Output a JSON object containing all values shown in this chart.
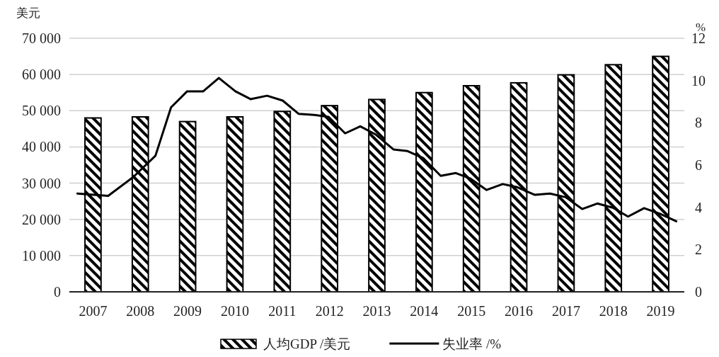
{
  "chart_data": {
    "type": "bar",
    "ylabel": "美元",
    "y2label": "%",
    "x": [
      2007,
      2008,
      2009,
      2010,
      2011,
      2012,
      2013,
      2014,
      2015,
      2016,
      2017,
      2018,
      2019
    ],
    "xlim": [
      2006.5,
      2019.5
    ],
    "xticks": [
      2007,
      2008,
      2009,
      2010,
      2011,
      2012,
      2013,
      2014,
      2015,
      2016,
      2017,
      2018,
      2019
    ],
    "ylim": [
      0,
      70000
    ],
    "yticks": [
      0,
      {
        "value": 10000,
        "label": "10 000"
      },
      {
        "value": 20000,
        "label": "20 000"
      },
      {
        "value": 30000,
        "label": "30 000"
      },
      {
        "value": 40000,
        "label": "40 000"
      },
      {
        "value": 50000,
        "label": "50 000"
      },
      {
        "value": 60000,
        "label": "60 000"
      },
      {
        "value": 70000,
        "label": "70 000"
      }
    ],
    "y2lim": [
      0,
      12
    ],
    "y2ticks": [
      0,
      2,
      4,
      6,
      8,
      10,
      12
    ],
    "grid": "y",
    "legend": "bottom",
    "series": [
      {
        "name": "人均GDP /美元",
        "color": "#000000",
        "values": [
          48000,
          48300,
          47000,
          48300,
          49800,
          51400,
          53100,
          55000,
          56900,
          57700,
          59900,
          62700,
          65000
        ]
      },
      {
        "name": "失业率 /%",
        "type": "line",
        "axis": "y2",
        "color": "#000000",
        "x": [
          2006.67,
          2007.32,
          2007.85,
          2008.32,
          2008.65,
          2008.99,
          2009.33,
          2009.66,
          2010.01,
          2010.33,
          2010.68,
          2011.01,
          2011.35,
          2011.68,
          2011.98,
          2012.33,
          2012.65,
          2012.98,
          2013.35,
          2013.65,
          2013.98,
          2014.35,
          2014.67,
          2014.97,
          2015.32,
          2015.66,
          2015.97,
          2016.34,
          2016.66,
          2016.99,
          2017.34,
          2017.66,
          2017.99,
          2018.31,
          2018.65,
          2018.98,
          2019.33
        ],
        "values": [
          4.65,
          4.54,
          5.43,
          6.44,
          8.73,
          9.49,
          9.49,
          10.12,
          9.49,
          9.12,
          9.28,
          9.05,
          8.42,
          8.37,
          8.28,
          7.5,
          7.83,
          7.44,
          6.74,
          6.66,
          6.33,
          5.49,
          5.62,
          5.37,
          4.82,
          5.1,
          4.95,
          4.59,
          4.65,
          4.48,
          3.92,
          4.18,
          3.98,
          3.56,
          3.96,
          3.7,
          3.34
        ]
      }
    ]
  }
}
